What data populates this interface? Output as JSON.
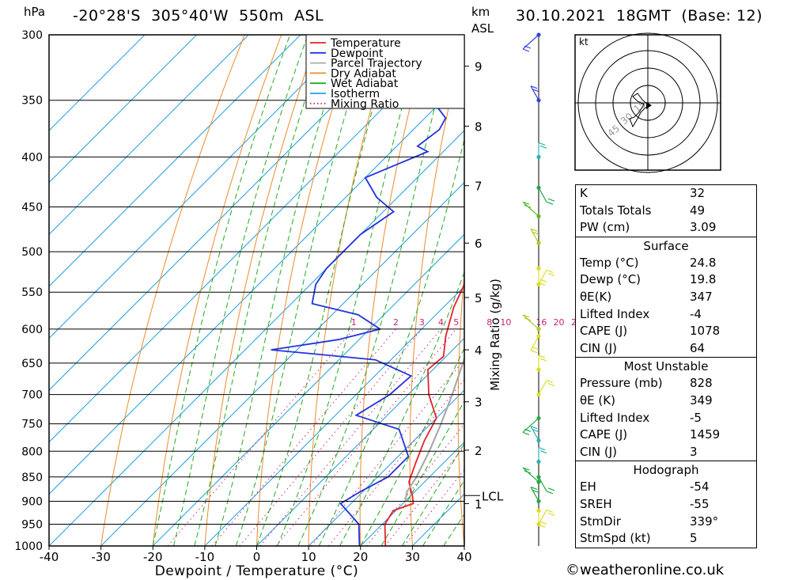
{
  "header": {
    "hpa_label": "hPa",
    "location": "-20°28'S  305°40'W  550m  ASL",
    "km_label": "km",
    "asl_label": "ASL",
    "datetime": "30.10.2021  18GMT  (Base: 12)"
  },
  "chart_data": {
    "type": "line",
    "title": "Skew-T log-P diagram",
    "xlabel": "Dewpoint / Temperature (°C)",
    "ylabel": "hPa",
    "xlim": [
      -40,
      40
    ],
    "ylim": [
      1000,
      300
    ],
    "x_ticks": [
      -40,
      -30,
      -20,
      -10,
      0,
      10,
      20,
      30,
      40
    ],
    "pressure_levels": [
      300,
      350,
      400,
      450,
      500,
      550,
      600,
      650,
      700,
      750,
      800,
      850,
      900,
      950,
      1000
    ],
    "km_ticks": [
      {
        "km": 1,
        "p": 905
      },
      {
        "km": 2,
        "p": 798
      },
      {
        "km": 3,
        "p": 712
      },
      {
        "km": 4,
        "p": 630
      },
      {
        "km": 5,
        "p": 557
      },
      {
        "km": 6,
        "p": 490
      },
      {
        "km": 7,
        "p": 428
      },
      {
        "km": 8,
        "p": 372
      },
      {
        "km": 9,
        "p": 323
      }
    ],
    "lcl": {
      "label": "LCL",
      "p": 888
    },
    "mixing_ratio_axis_label": "Mixing Ratio (g/kg)",
    "mixing_ratio_values": [
      "1",
      "2",
      "3",
      "4",
      "5",
      "8",
      "10",
      "16",
      "20",
      "25"
    ],
    "legend": [
      "Temperature",
      "Dewpoint",
      "Parcel Trajectory",
      "Dry Adiabat",
      "Wet Adiabat",
      "Isotherm",
      "Mixing Ratio"
    ],
    "series": [
      {
        "name": "Temperature",
        "color": "#e8202a",
        "points": [
          [
            1000,
            24.8
          ],
          [
            950,
            20.5
          ],
          [
            920,
            19.5
          ],
          [
            905,
            22.0
          ],
          [
            890,
            20.5
          ],
          [
            860,
            17.0
          ],
          [
            820,
            14.5
          ],
          [
            780,
            12.0
          ],
          [
            740,
            10.0
          ],
          [
            700,
            4.0
          ],
          [
            660,
            -1.0
          ],
          [
            640,
            -0.5
          ],
          [
            610,
            -4.0
          ],
          [
            570,
            -8.0
          ],
          [
            520,
            -12.0
          ],
          [
            480,
            -16.0
          ],
          [
            440,
            -21.0
          ],
          [
            410,
            -23.0
          ],
          [
            395,
            -24.5
          ],
          [
            370,
            -29.0
          ],
          [
            345,
            -33.5
          ],
          [
            325,
            -39.0
          ],
          [
            300,
            -43.0
          ]
        ]
      },
      {
        "name": "Dewpoint",
        "color": "#2233dd",
        "points": [
          [
            1000,
            19.8
          ],
          [
            950,
            15.5
          ],
          [
            905,
            8.0
          ],
          [
            880,
            9.5
          ],
          [
            850,
            12.0
          ],
          [
            810,
            12.0
          ],
          [
            760,
            5.0
          ],
          [
            735,
            -6.0
          ],
          [
            700,
            -3.5
          ],
          [
            670,
            -3.0
          ],
          [
            645,
            -13.0
          ],
          [
            630,
            -35.0
          ],
          [
            615,
            -24.0
          ],
          [
            600,
            -18.0
          ],
          [
            580,
            -25.0
          ],
          [
            565,
            -36.0
          ],
          [
            540,
            -39.0
          ],
          [
            520,
            -40.0
          ],
          [
            480,
            -40.0
          ],
          [
            455,
            -38.0
          ],
          [
            440,
            -44.0
          ],
          [
            420,
            -50.0
          ],
          [
            395,
            -43.0
          ],
          [
            390,
            -46.0
          ],
          [
            375,
            -45.0
          ],
          [
            365,
            -46.0
          ],
          [
            355,
            -50.0
          ],
          [
            345,
            -45.0
          ],
          [
            338,
            -48.0
          ],
          [
            330,
            -46.0
          ],
          [
            320,
            -51.0
          ],
          [
            300,
            -57.0
          ]
        ]
      },
      {
        "name": "Parcel Trajectory",
        "color": "#aaaaaa",
        "points": [
          [
            900,
            20.0
          ],
          [
            880,
            18.5
          ],
          [
            850,
            17.5
          ],
          [
            800,
            15.0
          ],
          [
            750,
            12.0
          ],
          [
            700,
            8.5
          ],
          [
            650,
            4.5
          ],
          [
            600,
            0.0
          ],
          [
            550,
            -5.0
          ],
          [
            500,
            -10.5
          ],
          [
            450,
            -17.0
          ],
          [
            400,
            -25.0
          ],
          [
            370,
            -30.0
          ]
        ]
      }
    ],
    "wind_barbs": [
      {
        "p": 300,
        "color": "#3344dd"
      },
      {
        "p": 350,
        "color": "#3344dd"
      },
      {
        "p": 400,
        "color": "#2ab3b3"
      },
      {
        "p": 430,
        "color": "#22aa44"
      },
      {
        "p": 460,
        "color": "#55bb22"
      },
      {
        "p": 490,
        "color": "#aacc22"
      },
      {
        "p": 520,
        "color": "#dddd22"
      },
      {
        "p": 540,
        "color": "#dddd22"
      },
      {
        "p": 600,
        "color": "#aacc22"
      },
      {
        "p": 610,
        "color": "#dddd22"
      },
      {
        "p": 660,
        "color": "#dddd22"
      },
      {
        "p": 700,
        "color": "#dddd22"
      },
      {
        "p": 740,
        "color": "#22aa44"
      },
      {
        "p": 780,
        "color": "#2ab3b3"
      },
      {
        "p": 820,
        "color": "#2ab3b3"
      },
      {
        "p": 850,
        "color": "#22aa44"
      },
      {
        "p": 860,
        "color": "#22aa44"
      },
      {
        "p": 900,
        "color": "#22aa44"
      },
      {
        "p": 920,
        "color": "#dddd22"
      },
      {
        "p": 950,
        "color": "#dddd22"
      }
    ]
  },
  "hodograph": {
    "unit_label": "kt",
    "ring_labels": [
      "15",
      "30",
      "45"
    ]
  },
  "indices": [
    {
      "label": "K",
      "value": "32"
    },
    {
      "label": "Totals Totals",
      "value": "49"
    },
    {
      "label": "PW (cm)",
      "value": "3.09"
    }
  ],
  "surface": {
    "title": "Surface",
    "rows": [
      {
        "label": "Temp (°C)",
        "value": "24.8"
      },
      {
        "label": "Dewp (°C)",
        "value": "19.8"
      },
      {
        "label": "θE(K)",
        "value": "347"
      },
      {
        "label": "Lifted Index",
        "value": "-4"
      },
      {
        "label": "CAPE (J)",
        "value": "1078"
      },
      {
        "label": "CIN (J)",
        "value": "64"
      }
    ]
  },
  "most_unstable": {
    "title": "Most Unstable",
    "rows": [
      {
        "label": "Pressure (mb)",
        "value": "828"
      },
      {
        "label": "θE (K)",
        "value": "349"
      },
      {
        "label": "Lifted Index",
        "value": "-5"
      },
      {
        "label": "CAPE (J)",
        "value": "1459"
      },
      {
        "label": "CIN (J)",
        "value": "3"
      }
    ]
  },
  "hodograph_table": {
    "title": "Hodograph",
    "rows": [
      {
        "label": "EH",
        "value": "-54"
      },
      {
        "label": "SREH",
        "value": "-55"
      },
      {
        "label": "StmDir",
        "value": "339°"
      },
      {
        "label": "StmSpd (kt)",
        "value": "5"
      }
    ]
  },
  "footer": {
    "copyright": "©weatheronline.co.uk"
  }
}
